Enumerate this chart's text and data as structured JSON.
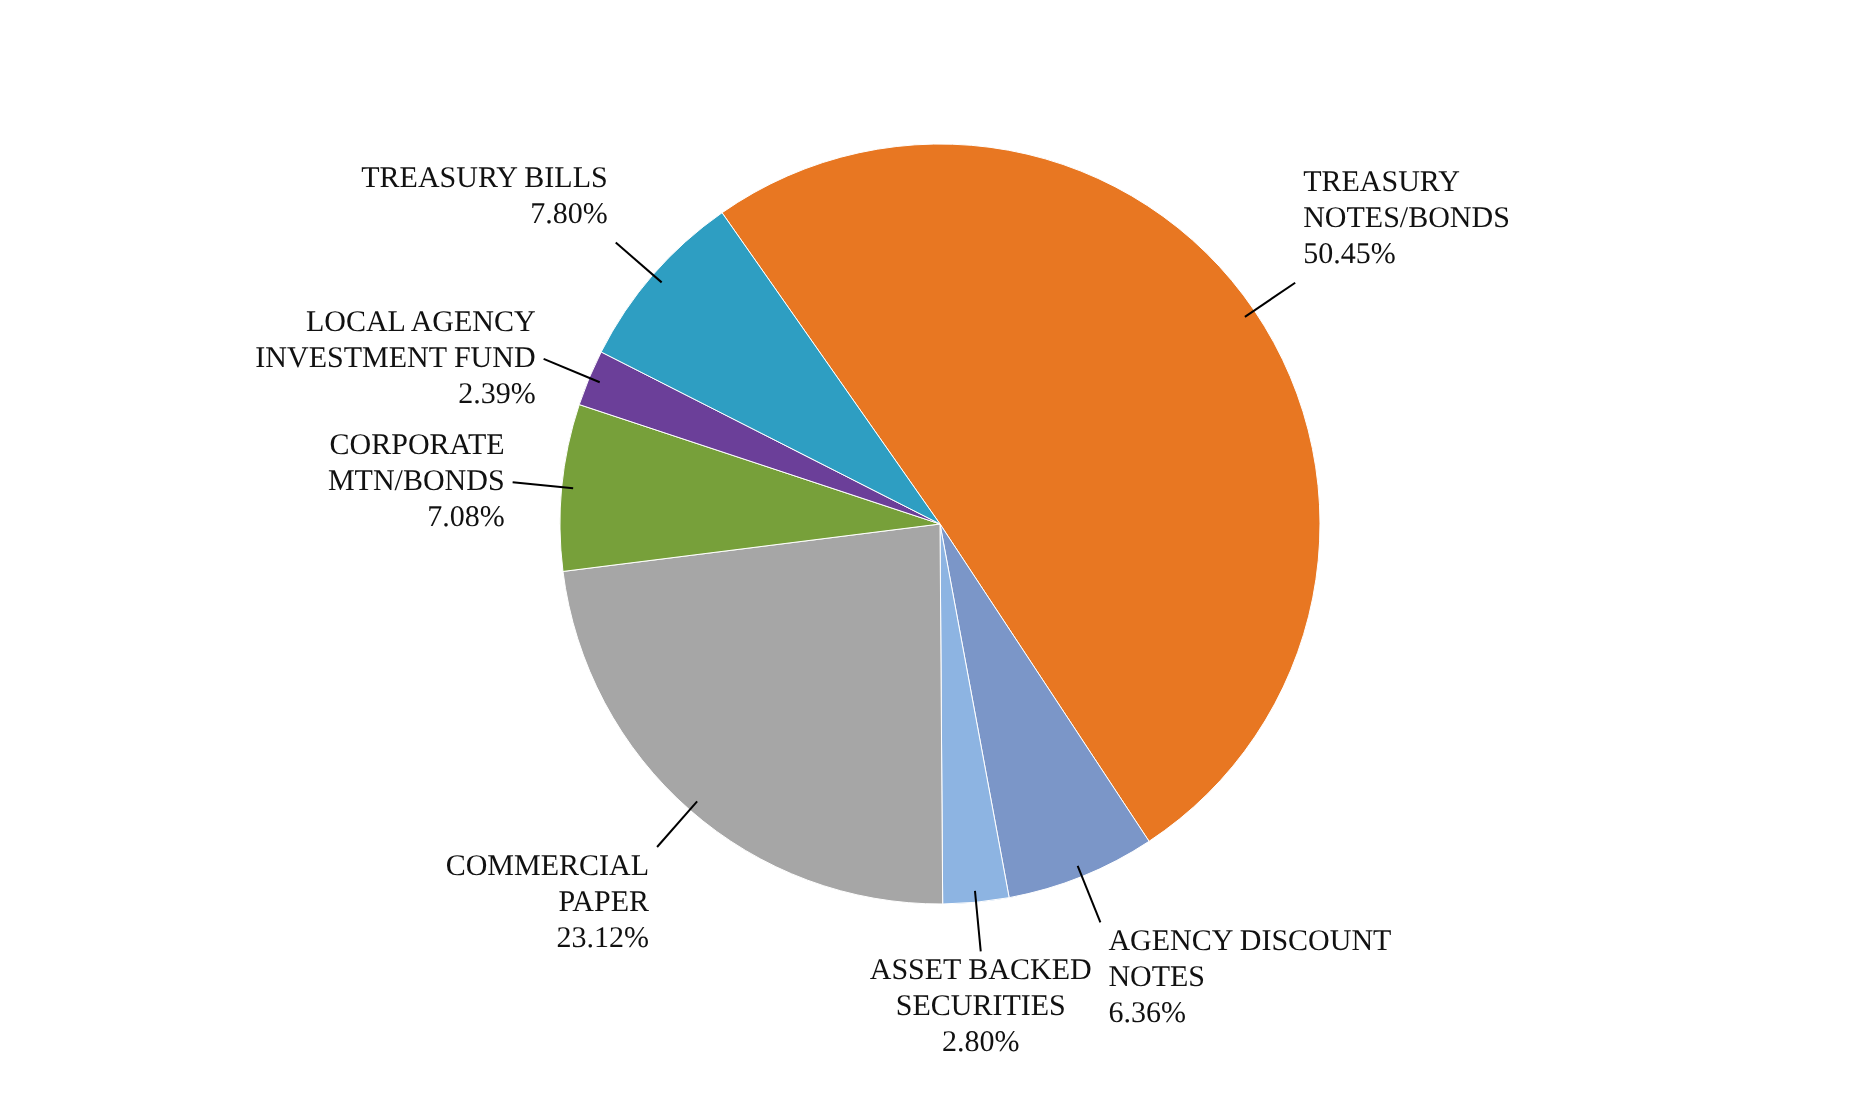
{
  "chart_data": {
    "type": "pie",
    "categories": [
      "TREASURY NOTES/BONDS",
      "AGENCY DISCOUNT NOTES",
      "ASSET BACKED SECURITIES",
      "COMMERCIAL PAPER",
      "CORPORATE MTN/BONDS",
      "LOCAL AGENCY INVESTMENT FUND",
      "TREASURY BILLS"
    ],
    "values": [
      50.45,
      6.36,
      2.8,
      23.12,
      7.08,
      2.39,
      7.8
    ],
    "value_labels": [
      "50.45%",
      "6.36%",
      "2.80%",
      "23.12%",
      "7.08%",
      "2.39%",
      "7.80%"
    ],
    "colors": [
      "#e87722",
      "#7b96c8",
      "#8db4e2",
      "#a6a6a6",
      "#77a03a",
      "#6b3f99",
      "#2e9ec2"
    ]
  }
}
